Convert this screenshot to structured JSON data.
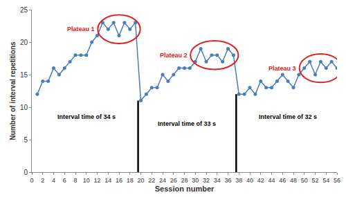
{
  "chart_data": {
    "type": "line",
    "x_label": "Session number",
    "y_label": "Number of interval repetitions",
    "x": [
      1,
      2,
      3,
      4,
      5,
      6,
      7,
      8,
      9,
      10,
      11,
      12,
      13,
      14,
      15,
      16,
      17,
      18,
      19,
      20,
      21,
      22,
      23,
      24,
      25,
      26,
      27,
      28,
      29,
      30,
      31,
      32,
      33,
      34,
      35,
      36,
      37,
      38,
      39,
      40,
      41,
      42,
      43,
      44,
      45,
      46,
      47,
      48,
      49,
      50,
      51,
      52,
      53,
      54,
      55,
      56
    ],
    "values": [
      12,
      14,
      14,
      16,
      15,
      16,
      17,
      18,
      18,
      18,
      20,
      21,
      23,
      22,
      23,
      21,
      23,
      22,
      23,
      11,
      12,
      13,
      13,
      15,
      14,
      15,
      16,
      16,
      16,
      17,
      19,
      17,
      18,
      18,
      17,
      19,
      18,
      12,
      12,
      13,
      12,
      14,
      13,
      13,
      14,
      15,
      14,
      13,
      15,
      16,
      17,
      15,
      17,
      16,
      17,
      16
    ],
    "color": "#4a7ebb",
    "marker": "circle",
    "xlim": [
      0,
      56
    ],
    "xticks": [
      0,
      2,
      4,
      6,
      8,
      10,
      12,
      14,
      16,
      18,
      20,
      22,
      24,
      26,
      28,
      30,
      32,
      34,
      36,
      38,
      40,
      42,
      44,
      46,
      48,
      50,
      52,
      54,
      56
    ],
    "ylim": [
      0,
      25
    ],
    "yticks": [
      0,
      5,
      10,
      15,
      20,
      25
    ],
    "grid": false,
    "phases": [
      {
        "label": "Interval time of 34 s",
        "sessions": [
          1,
          19
        ],
        "plateau": "Plateau 1",
        "plateau_sessions": [
          13,
          19
        ]
      },
      {
        "label": "Interval time of 33 s",
        "sessions": [
          20,
          37
        ],
        "plateau": "Plateau 2",
        "plateau_sessions": [
          30,
          37
        ]
      },
      {
        "label": "Interval time of 32 s",
        "sessions": [
          38,
          56
        ],
        "plateau": "Plateau 3",
        "plateau_sessions": [
          50,
          56
        ]
      }
    ],
    "plateau_color": "#e02020"
  }
}
